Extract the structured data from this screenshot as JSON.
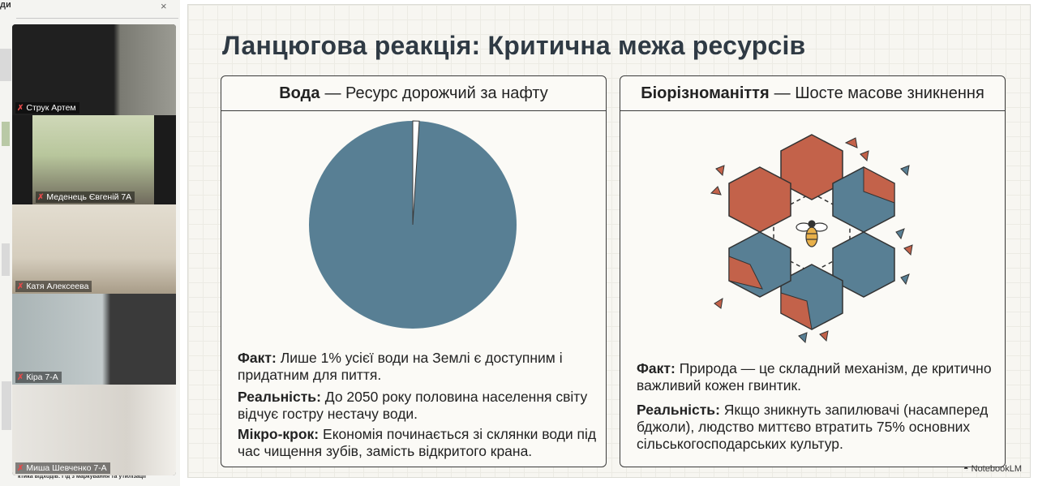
{
  "sidebar_doc": {
    "title": "ди",
    "close_icon": "close-icon",
    "footer": "ктика відходів: Гід з маркування та утилізації"
  },
  "participants": [
    {
      "name": "Струк Артем",
      "mic": "muted-mic-icon"
    },
    {
      "name": "Меденець Євгеній 7А",
      "mic": "muted-mic-icon"
    },
    {
      "name": "Катя Алексеева",
      "mic": "muted-mic-icon"
    },
    {
      "name": "Кіра 7-А",
      "mic": "muted-mic-icon"
    },
    {
      "name": "Миша Шевченко 7-А",
      "mic": "muted-mic-icon"
    }
  ],
  "slide": {
    "title": "Ланцюгова реакція: Критична межа ресурсів",
    "left_card": {
      "head_bold": "Вода",
      "head_rest": "— Ресурс дорожчий за нафту",
      "pie": {
        "accessible_percent": 1,
        "rest_percent": 99,
        "color_main": "#587f94",
        "color_slice": "#ffffff"
      },
      "paragraphs": [
        {
          "label": "Факт:",
          "text": "Лише 1% усієї води на Землі є доступним і придатним для пиття."
        },
        {
          "label": "Реальність:",
          "text": "До 2050 року половина населення світу відчує гостру нестачу води."
        },
        {
          "label": "Мікро-крок:",
          "text": "Економія починається зі склянки води під час чищення зубів, замість відкритого крана."
        }
      ]
    },
    "right_card": {
      "head_bold": "Біорізноманіття",
      "head_rest": "— Шосте масове зникнення",
      "illustration": "bee-hexagon-icon",
      "colors": {
        "orange": "#c3624a",
        "blue": "#587f94"
      },
      "paragraphs": [
        {
          "label": "Факт:",
          "text": "Природа — це складний механізм, де критично важливий кожен гвинтик."
        },
        {
          "label": "Реальність:",
          "text": "Якщо зникнуть запилювачі (насамперед бджоли), людство миттєво втратить 75% основних сільськогосподарських культур."
        }
      ]
    },
    "brand": "NotebookLM"
  }
}
